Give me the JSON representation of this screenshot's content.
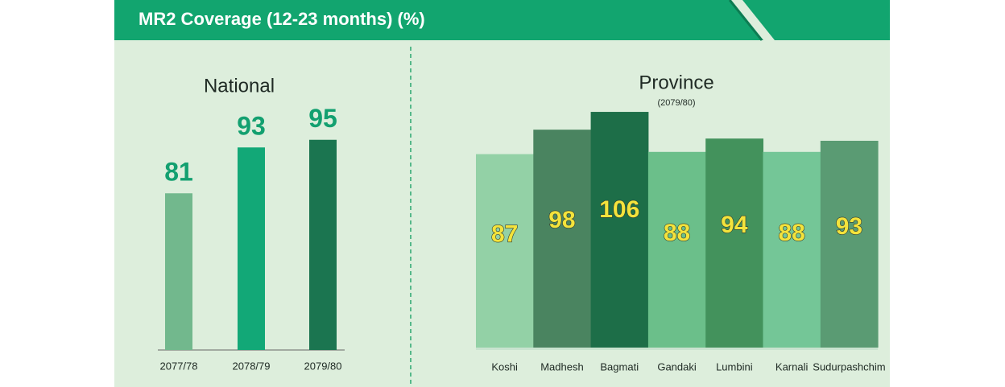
{
  "title": "MR2 Coverage (12-23 months) (%)",
  "chart_data": [
    {
      "type": "bar",
      "title": "National",
      "categories": [
        "2077/78",
        "2078/79",
        "2079/80"
      ],
      "values": [
        81,
        93,
        95
      ],
      "colors": [
        "#72b88d",
        "#12a877",
        "#1b7550"
      ],
      "ylim": [
        40,
        100
      ]
    },
    {
      "type": "column-fold",
      "title": "Province",
      "subtitle": "(2079/80)",
      "categories": [
        "Koshi",
        "Madhesh",
        "Bagmati",
        "Gandaki",
        "Lumbini",
        "Karnali",
        "Sudurpashchim"
      ],
      "values": [
        87,
        98,
        106,
        88,
        94,
        88,
        93
      ],
      "colors": [
        "#93d1a6",
        "#4a8460",
        "#1d6e48",
        "#6bbf8a",
        "#43925c",
        "#74c697",
        "#5a9b73"
      ],
      "ylim": [
        0,
        110
      ]
    }
  ]
}
